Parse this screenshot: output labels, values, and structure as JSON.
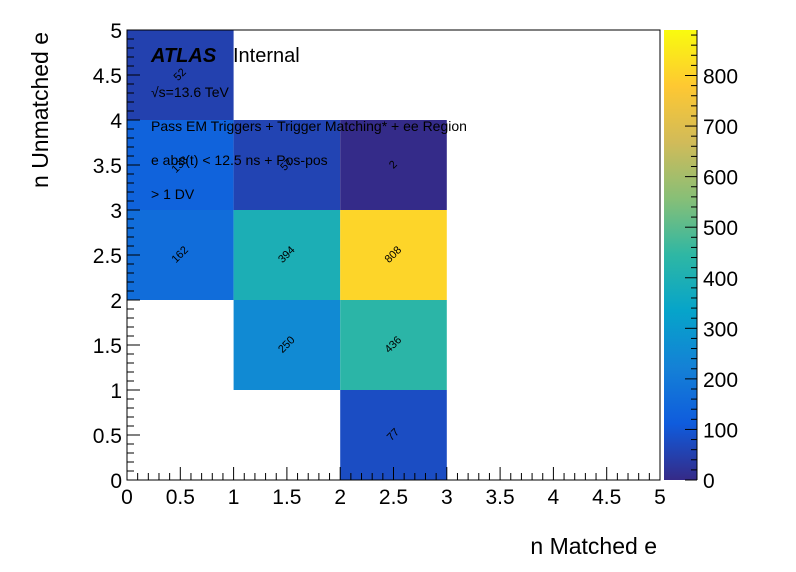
{
  "chart_data": {
    "type": "heatmap",
    "xlabel": "n Matched e",
    "ylabel": "n Unmatched e",
    "xlim": [
      0,
      5
    ],
    "ylim": [
      0,
      5
    ],
    "x_ticks": [
      "0",
      "0.5",
      "1",
      "1.5",
      "2",
      "2.5",
      "3",
      "3.5",
      "4",
      "4.5",
      "5"
    ],
    "y_ticks": [
      "0",
      "0.5",
      "1",
      "1.5",
      "2",
      "2.5",
      "3",
      "3.5",
      "4",
      "4.5",
      "5"
    ],
    "z_range": [
      0,
      890
    ],
    "colorbar_ticks": [
      "0",
      "100",
      "200",
      "300",
      "400",
      "500",
      "600",
      "700",
      "800"
    ],
    "cells": [
      {
        "x": [
          2,
          3
        ],
        "y": [
          0,
          1
        ],
        "value": 77,
        "label": "77"
      },
      {
        "x": [
          1,
          2
        ],
        "y": [
          1,
          2
        ],
        "value": 250,
        "label": "250"
      },
      {
        "x": [
          2,
          3
        ],
        "y": [
          1,
          2
        ],
        "value": 436,
        "label": "436"
      },
      {
        "x": [
          0,
          1
        ],
        "y": [
          2,
          3
        ],
        "value": 162,
        "label": "162"
      },
      {
        "x": [
          1,
          2
        ],
        "y": [
          2,
          3
        ],
        "value": 394,
        "label": "394"
      },
      {
        "x": [
          2,
          3
        ],
        "y": [
          2,
          3
        ],
        "value": 808,
        "label": "808"
      },
      {
        "x": [
          0,
          1
        ],
        "y": [
          3,
          4
        ],
        "value": 133,
        "label": "133"
      },
      {
        "x": [
          1,
          2
        ],
        "y": [
          3,
          4
        ],
        "value": 57,
        "label": "57"
      },
      {
        "x": [
          2,
          3
        ],
        "y": [
          3,
          4
        ],
        "value": 2,
        "label": "2"
      },
      {
        "x": [
          0,
          1
        ],
        "y": [
          4,
          5
        ],
        "value": 52,
        "label": "52"
      }
    ],
    "annotations": {
      "atlas": "ATLAS",
      "internal": "Internal",
      "energy": "√s=13.6 TeV",
      "selection": "Pass EM Triggers + Trigger Matching* + ee Region",
      "cut": "e abs(t) < 12.5 ns + Pos-pos",
      "dv": "> 1 DV"
    },
    "grid": false,
    "colormap": [
      "#352a87",
      "#0f5cdd",
      "#1481d6",
      "#06a4ca",
      "#2eb7a4",
      "#87bf77",
      "#d1bb59",
      "#fec832",
      "#f9fb0e"
    ]
  }
}
